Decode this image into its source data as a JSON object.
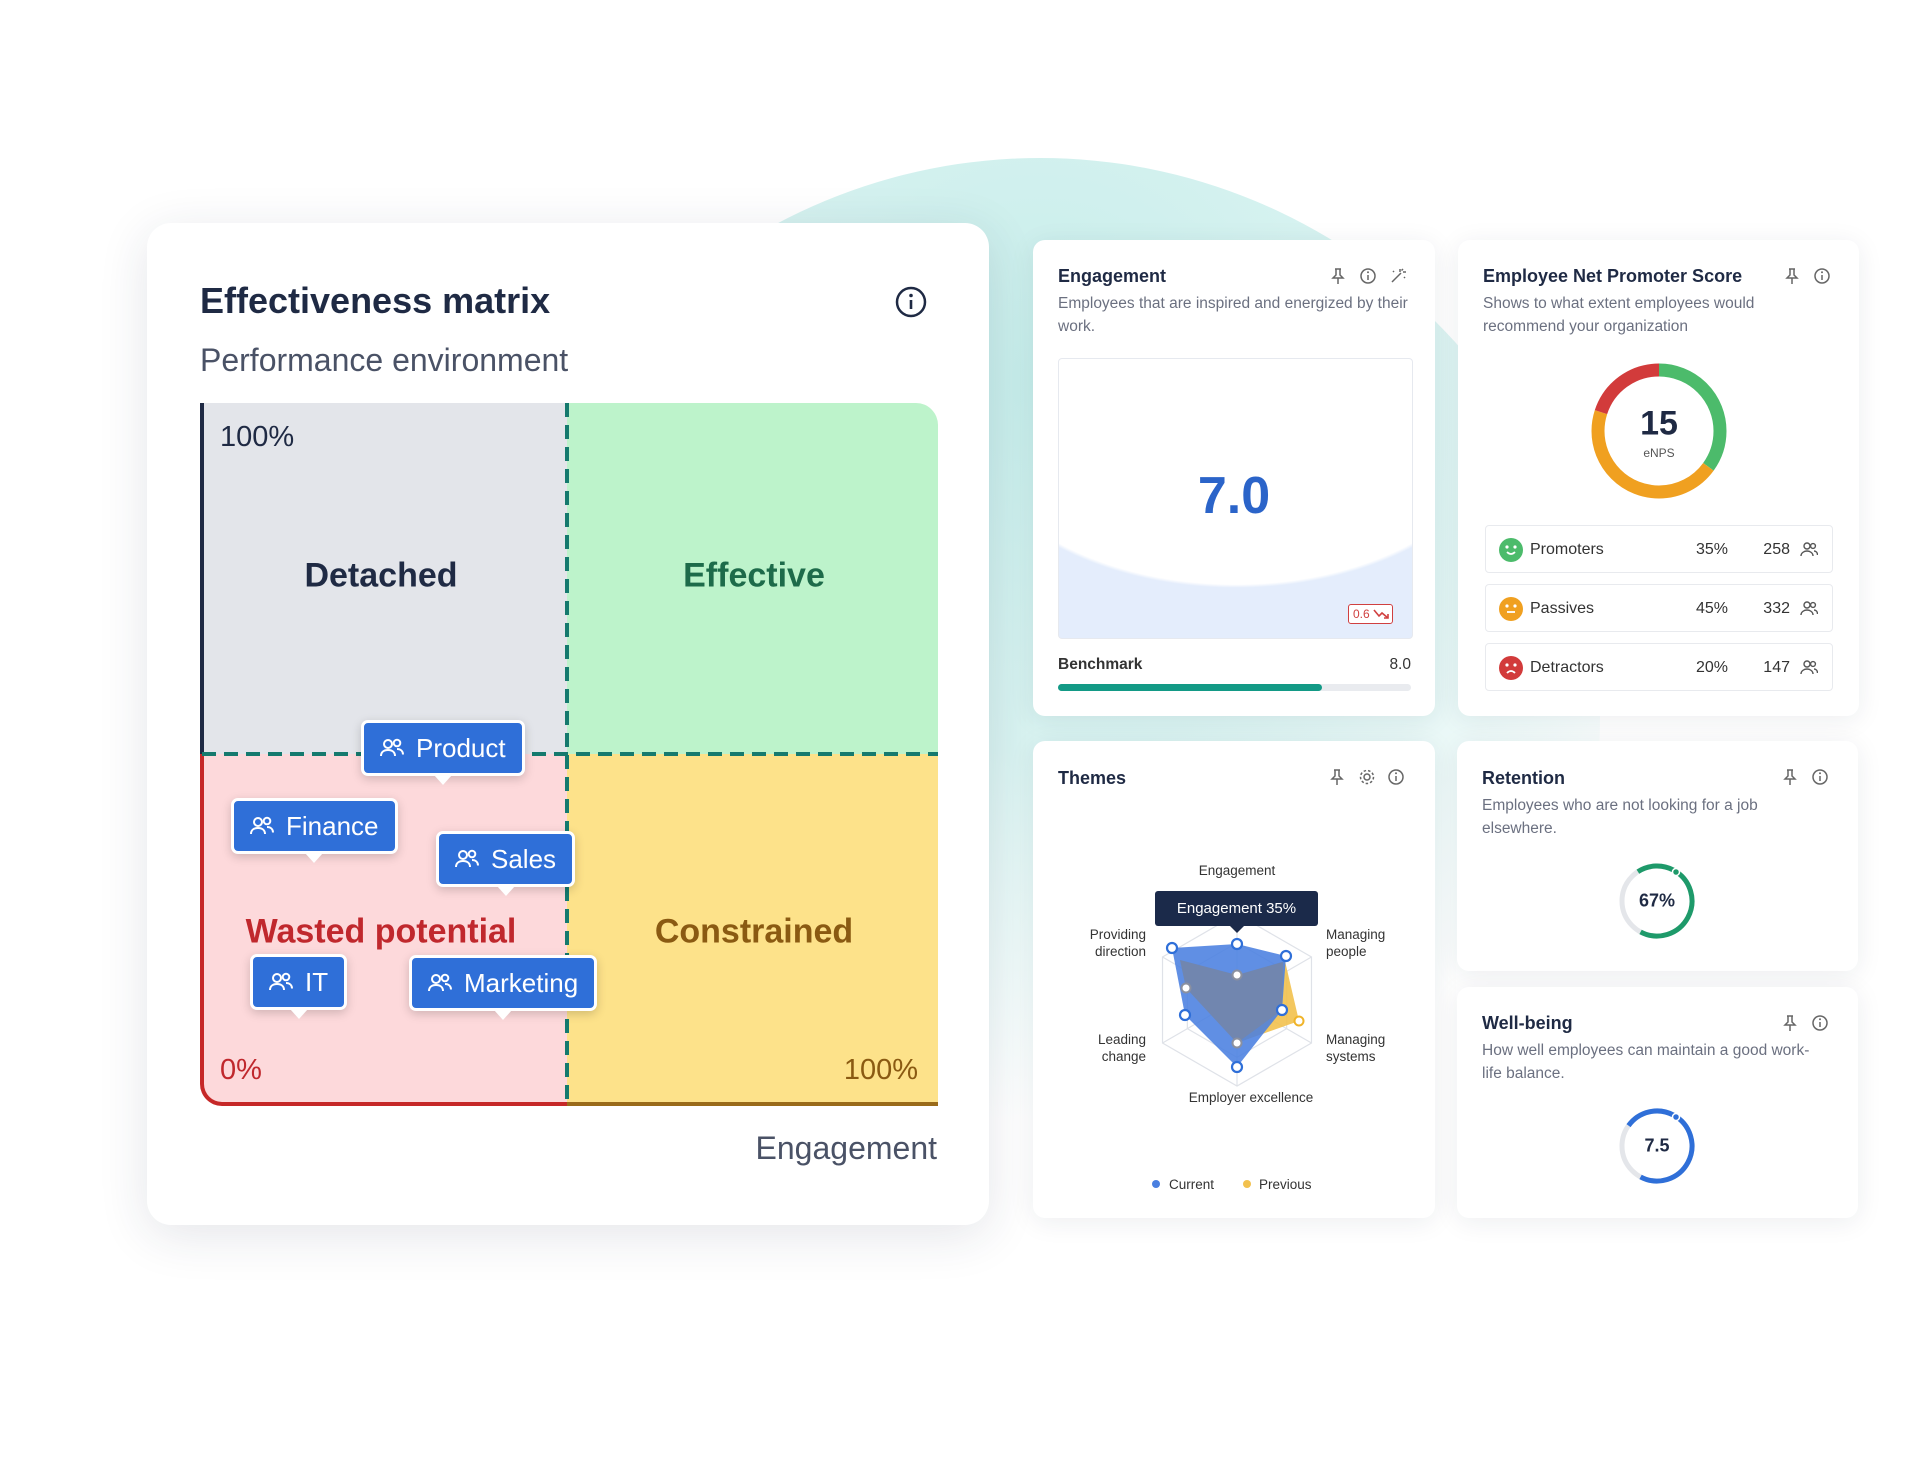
{
  "matrix": {
    "title": "Effectiveness matrix",
    "subtitle": "Performance environment",
    "y_max": "100%",
    "x_min": "0%",
    "x_max": "100%",
    "x_axis": "Engagement",
    "quadrants": [
      "Detached",
      "Effective",
      "Wasted potential",
      "Constrained"
    ],
    "teams": [
      "Product",
      "Finance",
      "Sales",
      "IT",
      "Marketing"
    ]
  },
  "engagement": {
    "title": "Engagement",
    "description": "Employees that are inspired and energized by their work.",
    "score": "7.0",
    "change": "0.6",
    "benchmark_label": "Benchmark",
    "benchmark": "8.0"
  },
  "enps": {
    "title": "Employee Net Promoter Score",
    "description": "Shows to what extent employees would recommend your organization",
    "score": "15",
    "score_label": "eNPS",
    "rows": [
      {
        "name": "Promoters",
        "percent": "35%",
        "count": 258
      },
      {
        "name": "Passives",
        "percent": "45%",
        "count": 332
      },
      {
        "name": "Detractors",
        "percent": "20%",
        "count": 147
      }
    ]
  },
  "themes": {
    "title": "Themes",
    "axes": [
      "Engagement",
      "Managing people",
      "Managing systems",
      "Employer excellence",
      "Leading change",
      "Providing direction"
    ],
    "tooltip": "Engagement 35%",
    "legend": [
      "Current",
      "Previous"
    ]
  },
  "retention": {
    "title": "Retention",
    "description": "Employees who are not looking for a job elsewhere.",
    "value": "67%"
  },
  "wellbeing": {
    "title": "Well-being",
    "description": "How well employees can maintain a good work-life balance.",
    "value": "7.5"
  }
}
